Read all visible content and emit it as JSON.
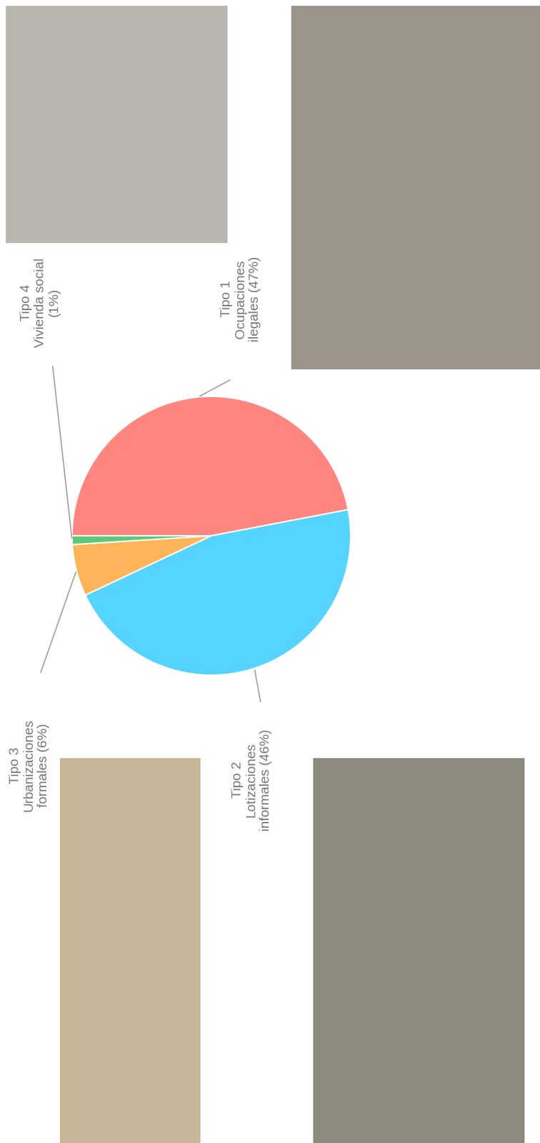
{
  "chart_data": {
    "type": "pie",
    "categories": [
      "Tipo 1\nOcupaciones\nilegales (47%)",
      "Tipo 2\nLotizaciones\ninformales (46%)",
      "Tipo 3\nUrbanizaciones\nformales (6%)",
      "Tipo 4\nVivienda social\n(1%)"
    ],
    "values": [
      47,
      46,
      6,
      1
    ],
    "colors": [
      "#ff8680",
      "#55d4ff",
      "#ffb55a",
      "#5cc87a"
    ]
  }
}
